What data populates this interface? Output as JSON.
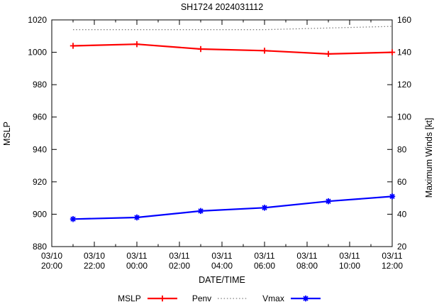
{
  "chart_data": {
    "type": "line",
    "title": "SH1724 2024031112",
    "xlabel": "DATE/TIME",
    "x_range": [
      20,
      36
    ],
    "x_ticks": [
      {
        "hour": 20,
        "line1": "03/10",
        "line2": "20:00"
      },
      {
        "hour": 22,
        "line1": "03/10",
        "line2": "22:00"
      },
      {
        "hour": 24,
        "line1": "03/11",
        "line2": "00:00"
      },
      {
        "hour": 26,
        "line1": "03/11",
        "line2": "02:00"
      },
      {
        "hour": 28,
        "line1": "03/11",
        "line2": "04:00"
      },
      {
        "hour": 30,
        "line1": "03/11",
        "line2": "06:00"
      },
      {
        "hour": 32,
        "line1": "03/11",
        "line2": "08:00"
      },
      {
        "hour": 34,
        "line1": "03/11",
        "line2": "10:00"
      },
      {
        "hour": 36,
        "line1": "03/11",
        "line2": "12:00"
      }
    ],
    "y_left": {
      "label": "MSLP",
      "range": [
        880,
        1020
      ],
      "ticks": [
        880,
        900,
        920,
        940,
        960,
        980,
        1000,
        1020
      ]
    },
    "y_right": {
      "label": "Maximum Winds [kt]",
      "range": [
        20,
        160
      ],
      "ticks": [
        20,
        40,
        60,
        80,
        100,
        120,
        140,
        160
      ]
    },
    "series": [
      {
        "name": "MSLP",
        "axis": "left",
        "color": "#ff0000",
        "marker": "plus",
        "line": "solid",
        "x": [
          21,
          24,
          27,
          30,
          33,
          36
        ],
        "values": [
          1004,
          1005,
          1002,
          1001,
          999,
          1000
        ]
      },
      {
        "name": "Penv",
        "axis": "left",
        "color": "#7f7f7f",
        "marker": "none",
        "line": "dotted",
        "x": [
          21,
          24,
          27,
          30,
          33,
          36
        ],
        "values": [
          1014,
          1014,
          1014,
          1014,
          1015,
          1016
        ]
      },
      {
        "name": "Vmax",
        "axis": "right",
        "color": "#0000ff",
        "marker": "asterisk",
        "line": "solid",
        "x": [
          21,
          24,
          27,
          30,
          33,
          36
        ],
        "values": [
          37,
          38,
          42,
          44,
          48,
          51
        ]
      }
    ],
    "legend_position": "bottom-center",
    "grid": "off",
    "colors": {
      "axis": "#000000",
      "background": "#ffffff"
    }
  }
}
